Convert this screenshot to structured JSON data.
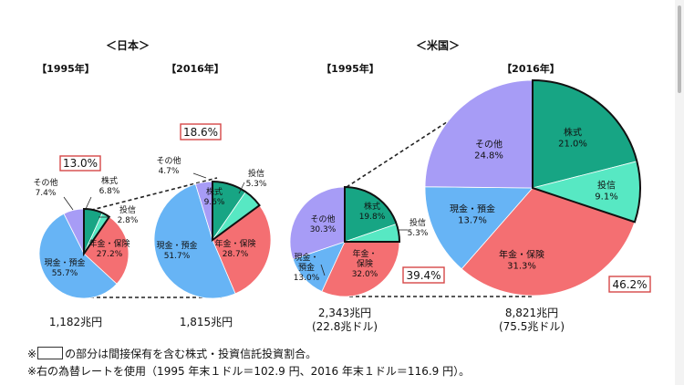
{
  "colors": {
    "kabushiki": "#17a584",
    "toushin": "#57e8c3",
    "nenkin": "#f46f72",
    "genkin": "#67b4f5",
    "sonota": "#a79cf6",
    "highlight_border": "#d64848"
  },
  "chart_data": [
    {
      "type": "pie",
      "group": "＜日本＞",
      "title": "【1995年】",
      "total": "1,182兆円",
      "total_sub": "",
      "highlight": "13.0%",
      "labels": [
        "株式",
        "投信",
        "年金・保険",
        "現金・預金",
        "その他"
      ],
      "values": [
        6.8,
        2.8,
        27.2,
        55.7,
        7.4
      ],
      "value_labels": [
        "6.8%",
        "2.8%",
        "27.2%",
        "55.7%",
        "7.4%"
      ]
    },
    {
      "type": "pie",
      "group": "＜日本＞",
      "title": "【2016年】",
      "total": "1,815兆円",
      "total_sub": "",
      "highlight": "18.6%",
      "labels": [
        "株式",
        "投信",
        "年金・保険",
        "現金・預金",
        "その他"
      ],
      "values": [
        9.6,
        5.3,
        28.7,
        51.7,
        4.7
      ],
      "value_labels": [
        "9.6%",
        "5.3%",
        "28.7%",
        "51.7%",
        "4.7%"
      ]
    },
    {
      "type": "pie",
      "group": "＜米国＞",
      "title": "【1995年】",
      "total": "2,343兆円",
      "total_sub": "(22.8兆ドル)",
      "highlight": "39.4%",
      "labels": [
        "株式",
        "投信",
        "年金・\n保険",
        "現金・\n預金",
        "その他"
      ],
      "values": [
        19.8,
        5.3,
        32.0,
        13.0,
        30.3
      ],
      "value_labels": [
        "19.8%",
        "5.3%",
        "32.0%",
        "13.0%",
        "30.3%"
      ]
    },
    {
      "type": "pie",
      "group": "＜米国＞",
      "title": "【2016年】",
      "total": "8,821兆円",
      "total_sub": "(75.5兆ドル)",
      "highlight": "46.2%",
      "labels": [
        "株式",
        "投信",
        "年金・保険",
        "現金・預金",
        "その他"
      ],
      "values": [
        21.0,
        9.1,
        31.3,
        13.7,
        24.8
      ],
      "value_labels": [
        "21.0%",
        "9.1%",
        "31.3%",
        "13.7%",
        "24.8%"
      ]
    }
  ],
  "footnotes": {
    "note1_prefix": "※",
    "note1_text": "の部分は間接保有を含む株式・投資信託投資割合。",
    "note2": "※右の為替レートを使用（1995 年末１ドル＝102.9 円、2016 年末１ドル＝116.9 円）。"
  }
}
